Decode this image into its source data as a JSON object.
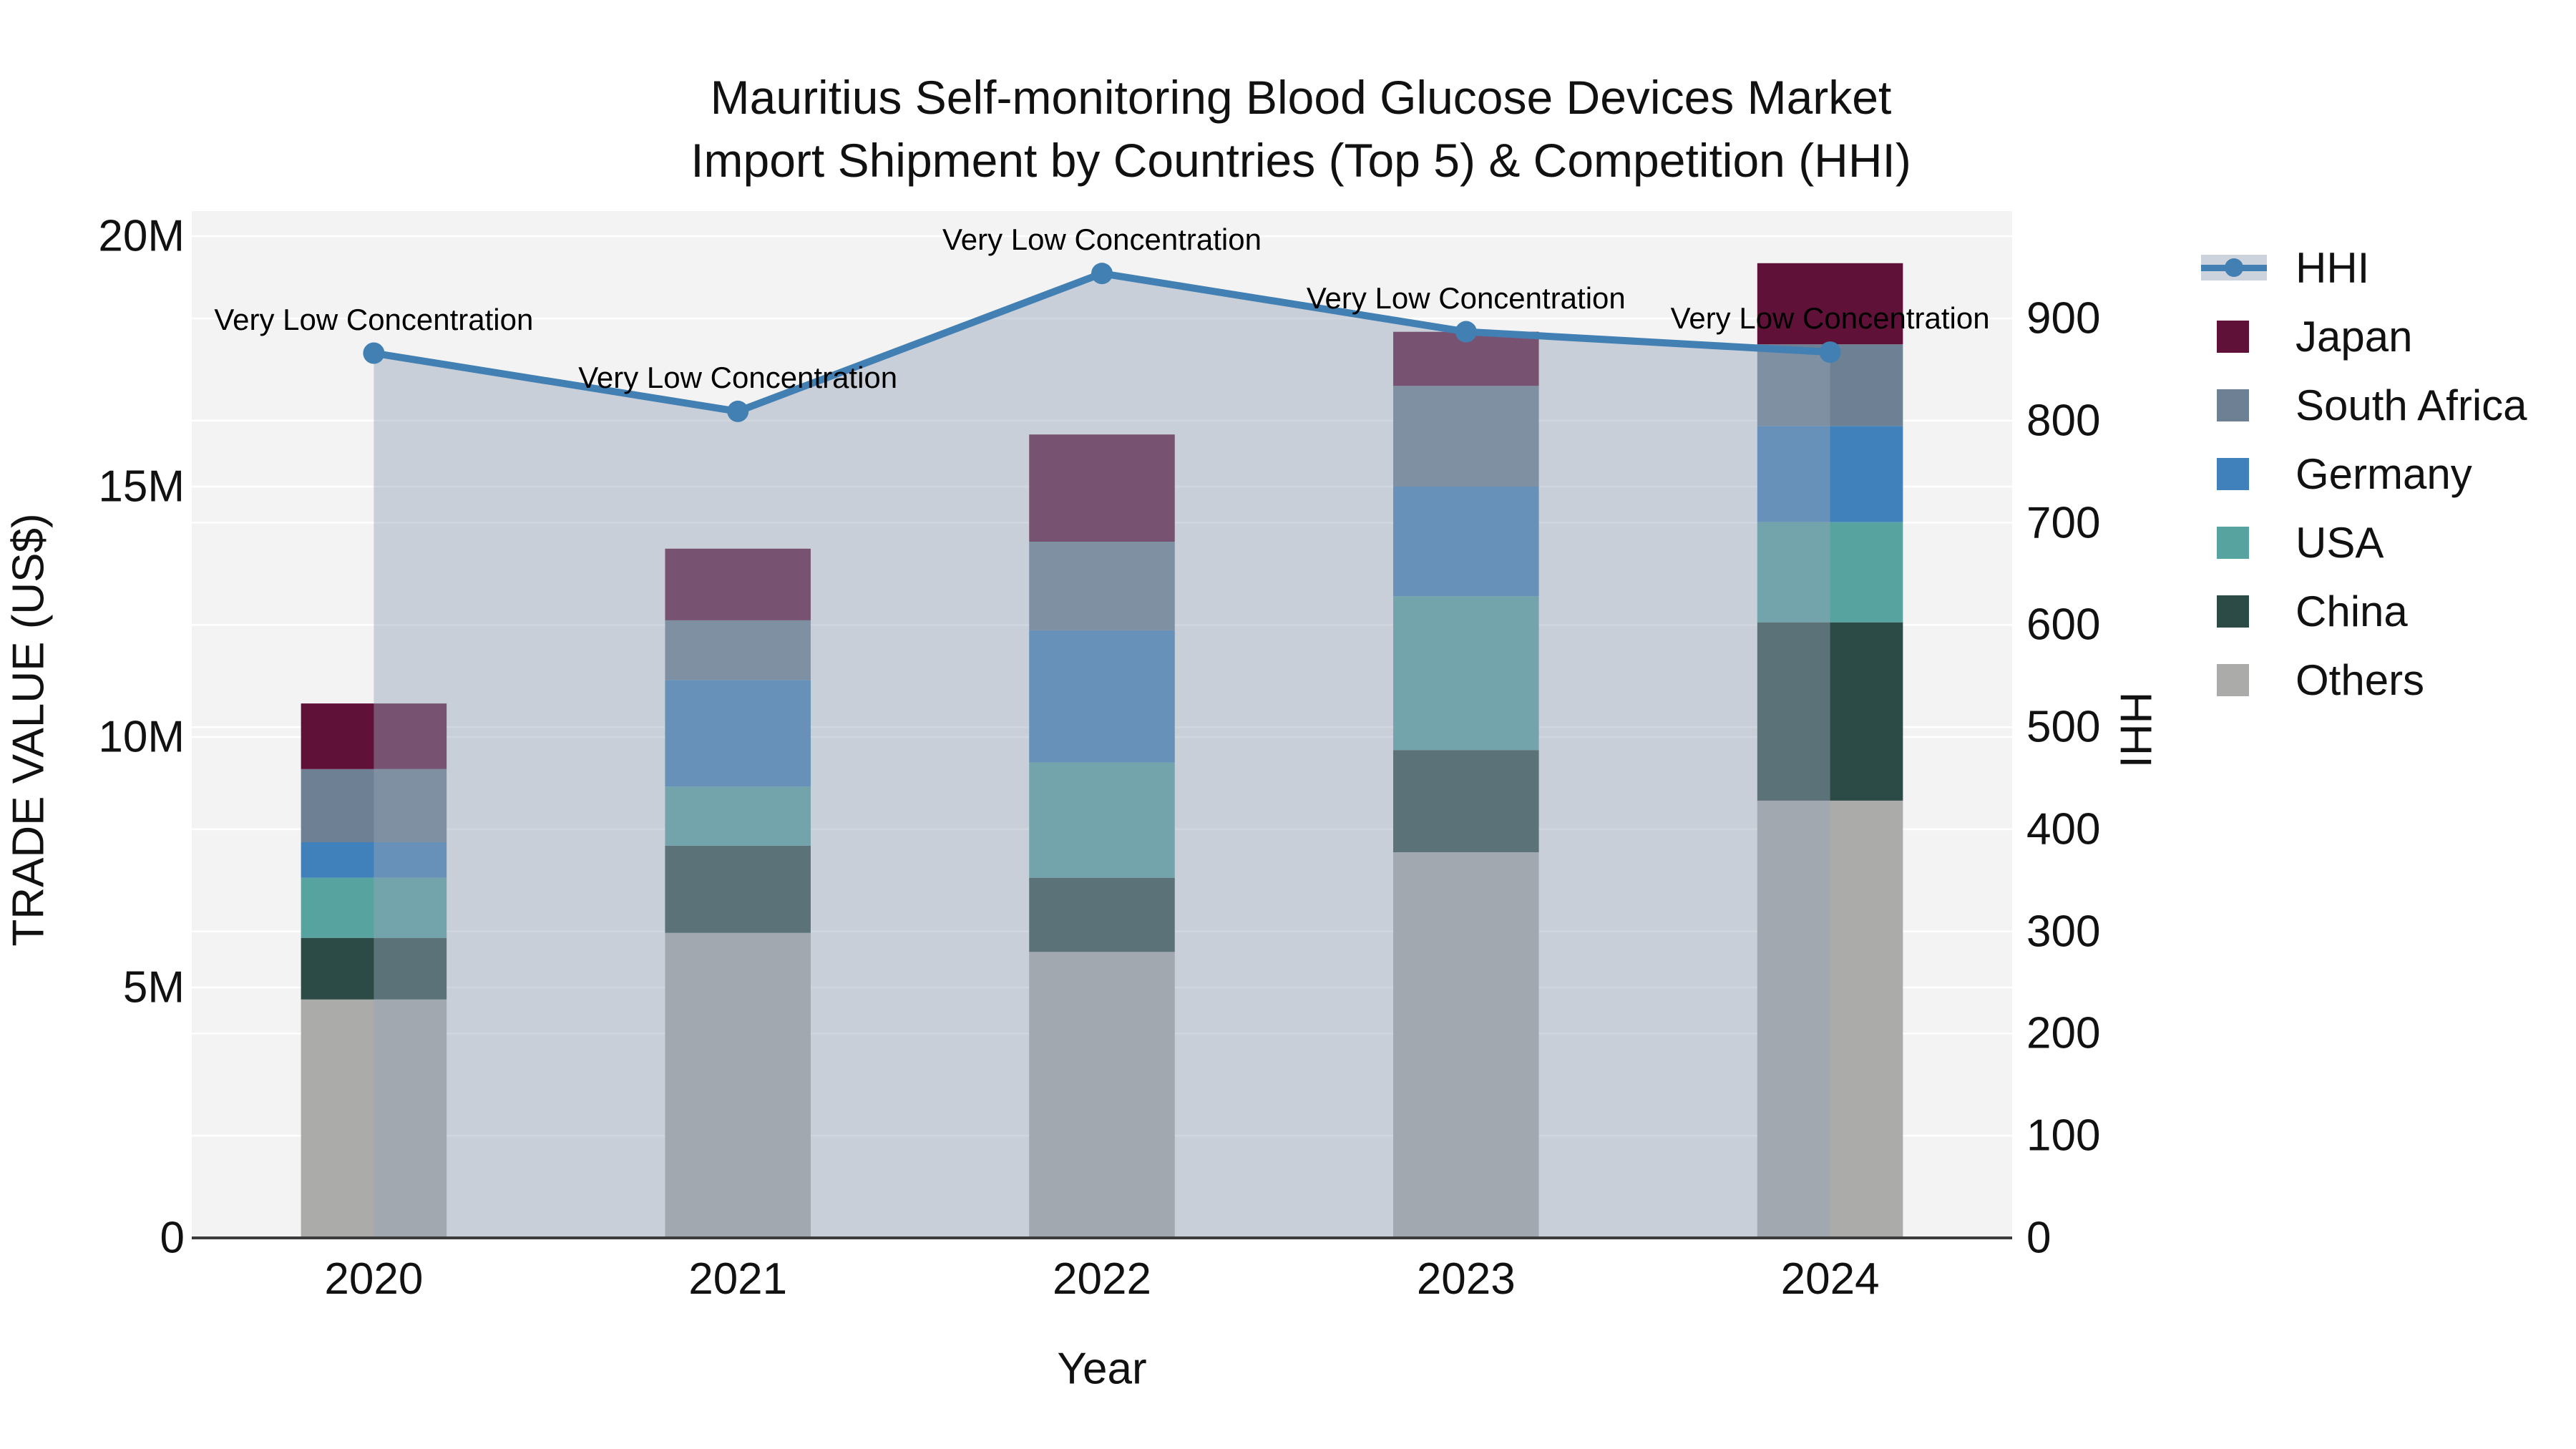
{
  "title": {
    "line1": "Mauritius Self-monitoring Blood Glucose Devices Market",
    "line2": "Import Shipment by Countries (Top 5) & Competition (HHI)"
  },
  "axes": {
    "x": {
      "title": "Year",
      "ticks": [
        "2020",
        "2021",
        "2022",
        "2023",
        "2024"
      ]
    },
    "y_left": {
      "title": "TRADE VALUE (US$)",
      "tick_labels": [
        "0",
        "5M",
        "10M",
        "15M",
        "20M"
      ],
      "tick_values": [
        0,
        5,
        10,
        15,
        20
      ],
      "range_max_millions": 20.5
    },
    "y_right": {
      "title": "HHI",
      "tick_labels": [
        "0",
        "100",
        "200",
        "300",
        "400",
        "500",
        "600",
        "700",
        "800",
        "900"
      ],
      "tick_values": [
        0,
        100,
        200,
        300,
        400,
        500,
        600,
        700,
        800,
        900
      ],
      "range_max": 1005
    }
  },
  "legend": [
    {
      "label": "HHI",
      "type": "line",
      "color_key": "hhi_line"
    },
    {
      "label": "Japan",
      "type": "square",
      "color_key": "japan"
    },
    {
      "label": "South Africa",
      "type": "square",
      "color_key": "south_africa"
    },
    {
      "label": "Germany",
      "type": "square",
      "color_key": "germany"
    },
    {
      "label": "USA",
      "type": "square",
      "color_key": "usa"
    },
    {
      "label": "China",
      "type": "square",
      "color_key": "china"
    },
    {
      "label": "Others",
      "type": "square",
      "color_key": "others"
    }
  ],
  "colors": {
    "japan": "#601137",
    "south_africa": "#6e8093",
    "germany": "#4181bb",
    "usa": "#57a3a0",
    "china": "#2c4a46",
    "others": "#abacaa",
    "hhi_line": "#4280b4",
    "hhi_band_fill": "rgba(151,164,184,0.45)",
    "plot_bg": "#f3f3f3",
    "grid": "#ffffff",
    "axis_line": "#3c3c3c"
  },
  "chart_data": {
    "type": "stacked-bar+line",
    "value_unit": "USD millions (left axis), HHI index (right axis)",
    "categories": [
      "2020",
      "2021",
      "2022",
      "2023",
      "2024"
    ],
    "series": [
      {
        "name": "Others",
        "axis": "left",
        "color_key": "others",
        "values": [
          4.76,
          6.09,
          5.71,
          7.7,
          8.73
        ]
      },
      {
        "name": "China",
        "axis": "left",
        "color_key": "china",
        "values": [
          1.23,
          1.74,
          1.48,
          2.04,
          3.56
        ]
      },
      {
        "name": "USA",
        "axis": "left",
        "color_key": "usa",
        "values": [
          1.2,
          1.18,
          2.3,
          3.07,
          2.0
        ]
      },
      {
        "name": "Germany",
        "axis": "left",
        "color_key": "germany",
        "values": [
          0.71,
          2.13,
          2.64,
          2.19,
          1.92
        ]
      },
      {
        "name": "South Africa",
        "axis": "left",
        "color_key": "south_africa",
        "values": [
          1.46,
          1.19,
          1.77,
          2.01,
          1.63
        ]
      },
      {
        "name": "Japan",
        "axis": "left",
        "color_key": "japan",
        "values": [
          1.31,
          1.43,
          2.14,
          1.08,
          1.62
        ]
      }
    ],
    "bar_totals_millions": [
      10.67,
      13.76,
      16.04,
      18.09,
      19.46
    ],
    "hhi": {
      "name": "HHI",
      "axis": "right",
      "values": [
        866,
        809,
        944,
        887,
        867
      ],
      "annotations": [
        "Very Low Concentration",
        "Very Low Concentration",
        "Very Low Concentration",
        "Very Low Concentration",
        "Very Low Concentration"
      ]
    },
    "layout_hints": {
      "grid": "both-axes",
      "legend_position": "right",
      "area_fill_under_line": true
    }
  }
}
